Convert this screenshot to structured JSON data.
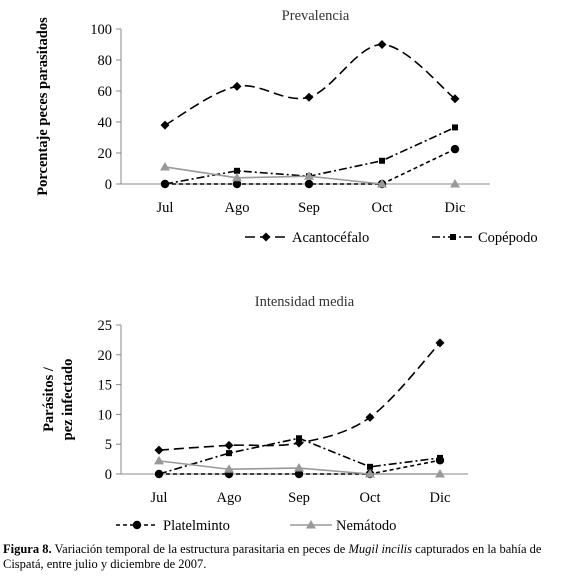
{
  "caption": {
    "label": "Figura 8.",
    "text_before": " Variación temporal de la estructura parasitaria en peces de ",
    "species": "Mugil incilis",
    "text_after": " capturados en la bahía de Cispatá, entre julio y diciembre de 2007."
  },
  "chart_data": [
    {
      "type": "line",
      "title": "Prevalencia",
      "ylabel": "Porcentaje  peces parasitados",
      "categories": [
        "Jul",
        "Ago",
        "Sep",
        "Oct",
        "Dic"
      ],
      "ylim": [
        0,
        100
      ],
      "yticks": [
        0,
        20,
        40,
        60,
        80,
        100
      ],
      "grid": false,
      "legend_position": "bottom",
      "legend": [
        "Acantocéfalo",
        "Copépodo"
      ],
      "series": [
        {
          "name": "Acantocéfalo",
          "marker": "diamond",
          "dash": "long-dash",
          "color": "#000000",
          "values": [
            38,
            63,
            56,
            90,
            55
          ],
          "smooth": true
        },
        {
          "name": "Copépodo",
          "marker": "square",
          "dash": "dash-dot",
          "color": "#000000",
          "values": [
            0,
            8.5,
            5,
            15,
            36.5
          ],
          "smooth": false
        },
        {
          "name": "Platelminto",
          "marker": "circle",
          "dash": "short-dash",
          "color": "#000000",
          "values": [
            0,
            0,
            0,
            0,
            22.5
          ],
          "smooth": false
        },
        {
          "name": "Nemátodo",
          "marker": "triangle",
          "dash": "solid",
          "color": "#999999",
          "values": [
            11,
            4,
            5,
            0,
            0
          ],
          "smooth": false,
          "break_before_last": true
        }
      ]
    },
    {
      "type": "line",
      "title": "Intensidad media",
      "ylabel_lines": [
        "Parásitos /",
        "pez infectado"
      ],
      "categories": [
        "Jul",
        "Ago",
        "Sep",
        "Oct",
        "Dic"
      ],
      "ylim": [
        0,
        25
      ],
      "yticks": [
        0,
        5,
        10,
        15,
        20,
        25
      ],
      "grid": false,
      "legend_position": "bottom",
      "legend": [
        "Platelminto",
        "Nemátodo"
      ],
      "series": [
        {
          "name": "Acantocéfalo",
          "marker": "diamond",
          "dash": "long-dash",
          "color": "#000000",
          "values": [
            4,
            4.8,
            5.2,
            9.5,
            22
          ],
          "smooth": true
        },
        {
          "name": "Copépodo",
          "marker": "square",
          "dash": "dash-dot",
          "color": "#000000",
          "values": [
            0,
            3.5,
            6,
            1.2,
            2.7
          ],
          "smooth": false
        },
        {
          "name": "Platelminto",
          "marker": "circle",
          "dash": "short-dash",
          "color": "#000000",
          "values": [
            0,
            0,
            0,
            0,
            2.3
          ],
          "smooth": false
        },
        {
          "name": "Nemátodo",
          "marker": "triangle",
          "dash": "solid",
          "color": "#999999",
          "values": [
            2.2,
            0.8,
            1,
            0,
            0
          ],
          "smooth": false
        }
      ]
    }
  ]
}
